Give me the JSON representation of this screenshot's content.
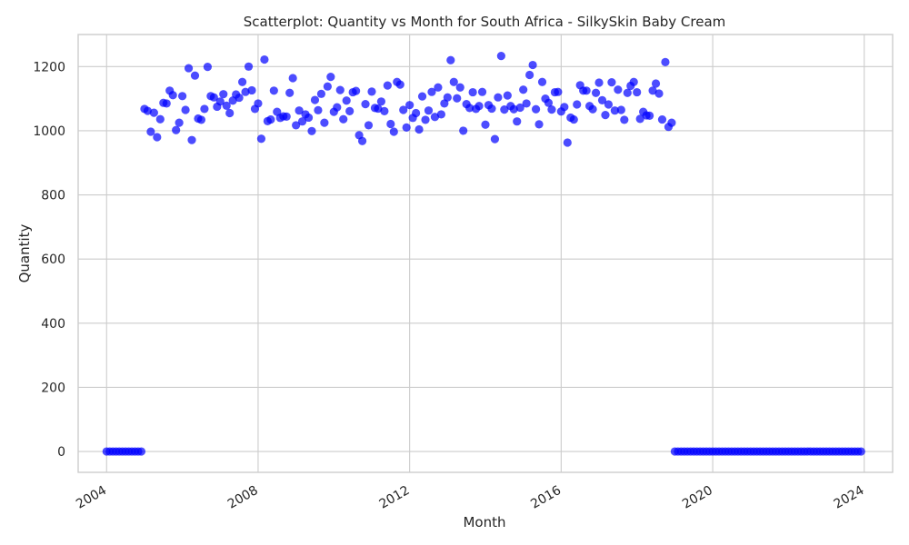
{
  "chart_data": {
    "type": "scatter",
    "title": "Scatterplot: Quantity vs Month for South Africa - SilkySkin Baby Cream",
    "xlabel": "Month",
    "ylabel": "Quantity",
    "x_axis": "date (monthly)",
    "xlim": [
      "2003-04-01",
      "2024-10-01"
    ],
    "ylim": [
      -65,
      1300
    ],
    "x_ticks": [
      "2004",
      "2008",
      "2012",
      "2016",
      "2020",
      "2024"
    ],
    "y_ticks": [
      0,
      200,
      400,
      600,
      800,
      1000,
      1200
    ],
    "grid": true,
    "legend": "none",
    "marker_color": "#0000ff",
    "marker_alpha": 0.7,
    "x": [
      "2004-01",
      "2004-02",
      "2004-03",
      "2004-04",
      "2004-05",
      "2004-06",
      "2004-07",
      "2004-08",
      "2004-09",
      "2004-10",
      "2004-11",
      "2004-12",
      "2005-01",
      "2005-02",
      "2005-03",
      "2005-04",
      "2005-05",
      "2005-06",
      "2005-07",
      "2005-08",
      "2005-09",
      "2005-10",
      "2005-11",
      "2005-12",
      "2006-01",
      "2006-02",
      "2006-03",
      "2006-04",
      "2006-05",
      "2006-06",
      "2006-07",
      "2006-08",
      "2006-09",
      "2006-10",
      "2006-11",
      "2006-12",
      "2007-01",
      "2007-02",
      "2007-03",
      "2007-04",
      "2007-05",
      "2007-06",
      "2007-07",
      "2007-08",
      "2007-09",
      "2007-10",
      "2007-11",
      "2007-12",
      "2008-01",
      "2008-02",
      "2008-03",
      "2008-04",
      "2008-05",
      "2008-06",
      "2008-07",
      "2008-08",
      "2008-09",
      "2008-10",
      "2008-11",
      "2008-12",
      "2009-01",
      "2009-02",
      "2009-03",
      "2009-04",
      "2009-05",
      "2009-06",
      "2009-07",
      "2009-08",
      "2009-09",
      "2009-10",
      "2009-11",
      "2009-12",
      "2010-01",
      "2010-02",
      "2010-03",
      "2010-04",
      "2010-05",
      "2010-06",
      "2010-07",
      "2010-08",
      "2010-09",
      "2010-10",
      "2010-11",
      "2010-12",
      "2011-01",
      "2011-02",
      "2011-03",
      "2011-04",
      "2011-05",
      "2011-06",
      "2011-07",
      "2011-08",
      "2011-09",
      "2011-10",
      "2011-11",
      "2011-12",
      "2012-01",
      "2012-02",
      "2012-03",
      "2012-04",
      "2012-05",
      "2012-06",
      "2012-07",
      "2012-08",
      "2012-09",
      "2012-10",
      "2012-11",
      "2012-12",
      "2013-01",
      "2013-02",
      "2013-03",
      "2013-04",
      "2013-05",
      "2013-06",
      "2013-07",
      "2013-08",
      "2013-09",
      "2013-10",
      "2013-11",
      "2013-12",
      "2014-01",
      "2014-02",
      "2014-03",
      "2014-04",
      "2014-05",
      "2014-06",
      "2014-07",
      "2014-08",
      "2014-09",
      "2014-10",
      "2014-11",
      "2014-12",
      "2015-01",
      "2015-02",
      "2015-03",
      "2015-04",
      "2015-05",
      "2015-06",
      "2015-07",
      "2015-08",
      "2015-09",
      "2015-10",
      "2015-11",
      "2015-12",
      "2016-01",
      "2016-02",
      "2016-03",
      "2016-04",
      "2016-05",
      "2016-06",
      "2016-07",
      "2016-08",
      "2016-09",
      "2016-10",
      "2016-11",
      "2016-12",
      "2017-01",
      "2017-02",
      "2017-03",
      "2017-04",
      "2017-05",
      "2017-06",
      "2017-07",
      "2017-08",
      "2017-09",
      "2017-10",
      "2017-11",
      "2017-12",
      "2018-01",
      "2018-02",
      "2018-03",
      "2018-04",
      "2018-05",
      "2018-06",
      "2018-07",
      "2018-08",
      "2018-09",
      "2018-10",
      "2018-11",
      "2018-12",
      "2019-01",
      "2019-02",
      "2019-03",
      "2019-04",
      "2019-05",
      "2019-06",
      "2019-07",
      "2019-08",
      "2019-09",
      "2019-10",
      "2019-11",
      "2019-12",
      "2020-01",
      "2020-02",
      "2020-03",
      "2020-04",
      "2020-05",
      "2020-06",
      "2020-07",
      "2020-08",
      "2020-09",
      "2020-10",
      "2020-11",
      "2020-12",
      "2021-01",
      "2021-02",
      "2021-03",
      "2021-04",
      "2021-05",
      "2021-06",
      "2021-07",
      "2021-08",
      "2021-09",
      "2021-10",
      "2021-11",
      "2021-12",
      "2022-01",
      "2022-02",
      "2022-03",
      "2022-04",
      "2022-05",
      "2022-06",
      "2022-07",
      "2022-08",
      "2022-09",
      "2022-10",
      "2022-11",
      "2022-12",
      "2023-01",
      "2023-02",
      "2023-03",
      "2023-04",
      "2023-05",
      "2023-06",
      "2023-07",
      "2023-08",
      "2023-09",
      "2023-10",
      "2023-11",
      "2023-12"
    ],
    "y": [
      0,
      0,
      0,
      0,
      0,
      0,
      0,
      0,
      0,
      0,
      0,
      0,
      1068,
      1062,
      997,
      1056,
      980,
      1036,
      1087,
      1085,
      1125,
      1111,
      1002,
      1025,
      1108,
      1065,
      1195,
      971,
      1172,
      1038,
      1034,
      1068,
      1199,
      1108,
      1104,
      1075,
      1091,
      1114,
      1078,
      1055,
      1094,
      1113,
      1103,
      1152,
      1121,
      1200,
      1126,
      1068,
      1085,
      975,
      1222,
      1030,
      1035,
      1125,
      1059,
      1040,
      1045,
      1044,
      1118,
      1164,
      1017,
      1063,
      1029,
      1051,
      1041,
      999,
      1096,
      1064,
      1115,
      1025,
      1138,
      1168,
      1059,
      1073,
      1127,
      1036,
      1094,
      1061,
      1120,
      1124,
      986,
      968,
      1083,
      1017,
      1122,
      1071,
      1069,
      1091,
      1061,
      1141,
      1021,
      997,
      1152,
      1144,
      1065,
      1010,
      1080,
      1040,
      1055,
      1004,
      1107,
      1034,
      1063,
      1121,
      1043,
      1135,
      1051,
      1085,
      1104,
      1220,
      1152,
      1101,
      1135,
      1000,
      1083,
      1071,
      1120,
      1068,
      1077,
      1121,
      1019,
      1080,
      1069,
      974,
      1104,
      1233,
      1066,
      1110,
      1077,
      1067,
      1029,
      1072,
      1128,
      1085,
      1174,
      1205,
      1067,
      1020,
      1152,
      1100,
      1087,
      1066,
      1120,
      1121,
      1060,
      1074,
      963,
      1041,
      1035,
      1082,
      1142,
      1125,
      1125,
      1077,
      1067,
      1118,
      1150,
      1095,
      1049,
      1082,
      1151,
      1063,
      1128,
      1065,
      1034,
      1118,
      1140,
      1152,
      1120,
      1037,
      1059,
      1048,
      1047,
      1125,
      1147,
      1116,
      1035,
      1214,
      1012,
      1025,
      0,
      0,
      0,
      0,
      0,
      0,
      0,
      0,
      0,
      0,
      0,
      0,
      0,
      0,
      0,
      0,
      0,
      0,
      0,
      0,
      0,
      0,
      0,
      0,
      0,
      0,
      0,
      0,
      0,
      0,
      0,
      0,
      0,
      0,
      0,
      0,
      0,
      0,
      0,
      0,
      0,
      0,
      0,
      0,
      0,
      0,
      0,
      0,
      0,
      0,
      0,
      0,
      0,
      0,
      0,
      0,
      0,
      0,
      0,
      0
    ]
  }
}
